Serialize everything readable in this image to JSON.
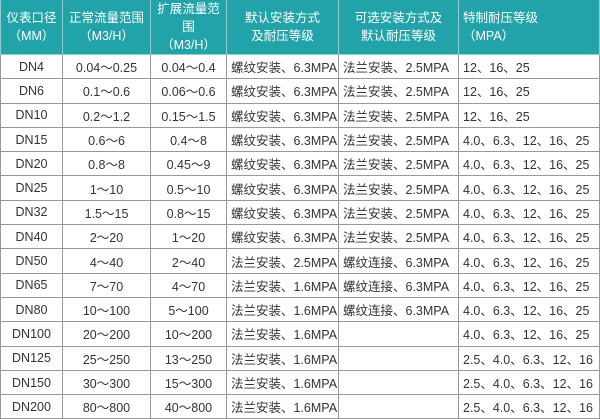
{
  "colors": {
    "header_bg": "#21a3a9",
    "header_text": "#ffffff",
    "border": "#999999"
  },
  "headers": [
    {
      "line1": "仪表口径",
      "line2": "（MM）"
    },
    {
      "line1": "正常流量范围",
      "line2": "（M3/H）"
    },
    {
      "line1": "扩展流量范围",
      "line2": "（M3/H）"
    },
    {
      "line1": "默认安装方式",
      "line2": "及耐压等级"
    },
    {
      "line1": "可选安装方式及",
      "line2": "默认耐压等级"
    },
    {
      "line1": "特制耐压等级",
      "line2": "（MPA）"
    }
  ],
  "rows": [
    [
      "DN4",
      "0.04～0.25",
      "0.04～0.4",
      "螺纹安装、6.3MPA",
      "法兰安装、2.5MPA",
      "12、16、25"
    ],
    [
      "DN6",
      "0.1～0.6",
      "0.06～0.6",
      "螺纹安装、6.3MPA",
      "法兰安装、2.5MPA",
      "12、16、25"
    ],
    [
      "DN10",
      "0.2～1.2",
      "0.15～1.5",
      "螺纹安装、6.3MPA",
      "法兰安装、2.5MPA",
      "12、16、25"
    ],
    [
      "DN15",
      "0.6～6",
      "0.4～8",
      "螺纹安装、6.3MPA",
      "法兰安装、2.5MPA",
      "4.0、6.3、12、16、25"
    ],
    [
      "DN20",
      "0.8～8",
      "0.45～9",
      "螺纹安装、6.3MPA",
      "法兰安装、2.5MPA",
      "4.0、6.3、12、16、25"
    ],
    [
      "DN25",
      "1～10",
      "0.5～10",
      "螺纹安装、6.3MPA",
      "法兰安装、2.5MPA",
      "4.0、6.3、12、16、25"
    ],
    [
      "DN32",
      "1.5～15",
      "0.8～15",
      "螺纹安装、6.3MPA",
      "法兰安装、2.5MPA",
      "4.0、6.3、12、16、25"
    ],
    [
      "DN40",
      "2～20",
      "1～20",
      "螺纹安装、6.3MPA",
      "法兰安装、2.5MPA",
      "4.0、6.3、12、16、25"
    ],
    [
      "DN50",
      "4～40",
      "2～40",
      "法兰安装、2.5MPA",
      "螺纹连接、6.3MPA",
      "4.0、6.3、12、16、25"
    ],
    [
      "DN65",
      "7～70",
      "4～70",
      "法兰安装、1.6MPA",
      "螺纹连接、6.3MPA",
      "4.0、6.3、12、16、25"
    ],
    [
      "DN80",
      "10～100",
      "5～100",
      "法兰安装、1.6MPA",
      "螺纹连接、6.3MPA",
      "4.0、6.3、12、16、25"
    ],
    [
      "DN100",
      "20～200",
      "10～200",
      "法兰安装、1.6MPA",
      "",
      "4.0、6.3、12、16、25"
    ],
    [
      "DN125",
      "25～250",
      "13～250",
      "法兰安装、1.6MPA",
      "",
      "2.5、4.0、6.3、12、16"
    ],
    [
      "DN150",
      "30～300",
      "15～300",
      "法兰安装、1.6MPA",
      "",
      "2.5、4.0、6.3、12、16"
    ],
    [
      "DN200",
      "80～800",
      "40～800",
      "法兰安装、1.6MPA",
      "",
      "2.5、4.0、6.3、12、16"
    ]
  ]
}
